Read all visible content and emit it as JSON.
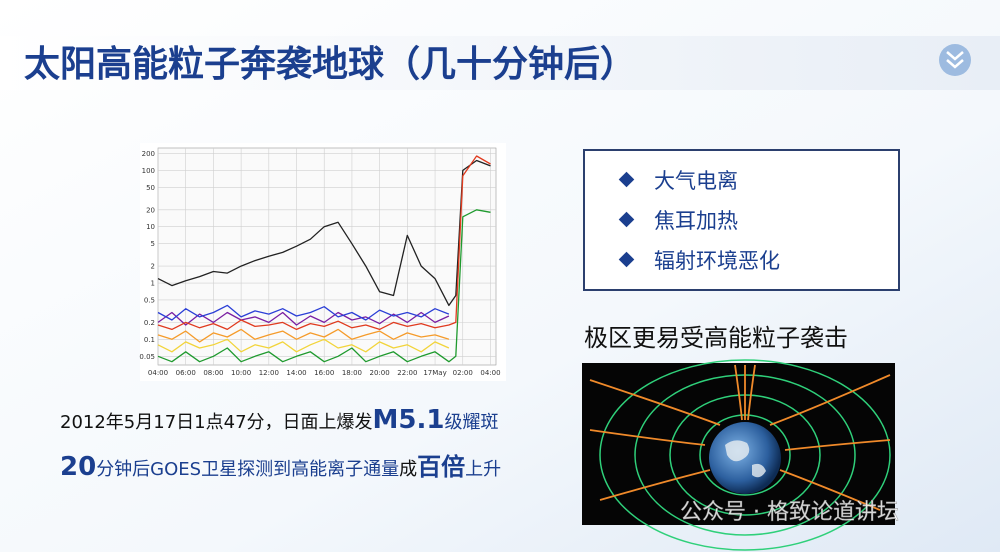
{
  "header": {
    "title": "太阳高能粒子奔袭地球（几十分钟后）"
  },
  "figure": {
    "chart_data": {
      "type": "line",
      "log_scale": true,
      "grid": true,
      "xlim": [
        4,
        28.4
      ],
      "ylim": [
        0.035,
        250
      ],
      "yticks": [
        200,
        100,
        50,
        20,
        10,
        5,
        2,
        1,
        0.5,
        0.2,
        0.1,
        0.05
      ],
      "xticks": [
        {
          "value": 4,
          "label": "04:00"
        },
        {
          "value": 6,
          "label": "06:00"
        },
        {
          "value": 8,
          "label": "08:00"
        },
        {
          "value": 10,
          "label": "10:00"
        },
        {
          "value": 12,
          "label": "12:00"
        },
        {
          "value": 14,
          "label": "14:00"
        },
        {
          "value": 16,
          "label": "16:00"
        },
        {
          "value": 18,
          "label": "18:00"
        },
        {
          "value": 20,
          "label": "20:00"
        },
        {
          "value": 22,
          "label": "22:00"
        },
        {
          "value": 24,
          "label": "17May"
        },
        {
          "value": 26,
          "label": "02:00"
        },
        {
          "value": 28,
          "label": "04:00"
        }
      ],
      "x": [
        4,
        5,
        6,
        7,
        8,
        9,
        10,
        11,
        12,
        13,
        14,
        15,
        16,
        17,
        18,
        19,
        20,
        21,
        22,
        23,
        24,
        25,
        25.5,
        26,
        27,
        28
      ],
      "series": [
        {
          "color": "#222222",
          "values": [
            1.2,
            0.9,
            1.1,
            1.3,
            1.6,
            1.5,
            2,
            2.5,
            3,
            3.5,
            4.5,
            6,
            10,
            12,
            5,
            2,
            0.7,
            0.6,
            7,
            2,
            1.2,
            0.4,
            0.6,
            100,
            150,
            120
          ]
        },
        {
          "color": "#7a1fa2",
          "values": [
            0.2,
            0.3,
            0.18,
            0.28,
            0.2,
            0.3,
            0.22,
            0.25,
            0.2,
            0.3,
            0.18,
            0.26,
            0.2,
            0.3,
            0.22,
            0.25,
            0.19,
            0.28,
            0.2,
            0.3,
            0.2,
            0.26,
            null,
            null,
            null,
            null
          ]
        },
        {
          "color": "#2b3fd6",
          "values": [
            0.3,
            0.22,
            0.35,
            0.25,
            0.3,
            0.4,
            0.25,
            0.32,
            0.28,
            0.35,
            0.26,
            0.3,
            0.38,
            0.25,
            0.3,
            0.22,
            0.33,
            0.26,
            0.3,
            0.25,
            0.35,
            0.28,
            null,
            null,
            null,
            null
          ]
        },
        {
          "color": "#f59b2a",
          "values": [
            0.12,
            0.1,
            0.14,
            0.09,
            0.13,
            0.11,
            0.15,
            0.1,
            0.12,
            0.14,
            0.1,
            0.13,
            0.11,
            0.15,
            0.1,
            0.12,
            0.14,
            0.1,
            0.13,
            0.11,
            0.12,
            0.1,
            null,
            null,
            null,
            null
          ]
        },
        {
          "color": "#f2d43a",
          "values": [
            0.08,
            0.06,
            0.09,
            0.07,
            0.08,
            0.1,
            0.06,
            0.08,
            0.07,
            0.09,
            0.06,
            0.08,
            0.1,
            0.07,
            0.08,
            0.06,
            0.09,
            0.07,
            0.08,
            0.06,
            0.09,
            0.07,
            null,
            null,
            null,
            null
          ]
        },
        {
          "color": "#e03a1e",
          "values": [
            0.18,
            0.15,
            0.2,
            0.16,
            0.19,
            0.15,
            0.22,
            0.17,
            0.18,
            0.2,
            0.15,
            0.19,
            0.17,
            0.21,
            0.16,
            0.18,
            0.15,
            0.2,
            0.17,
            0.19,
            0.16,
            0.18,
            0.2,
            80,
            180,
            130
          ]
        },
        {
          "color": "#1f9a2e",
          "values": [
            0.05,
            0.04,
            0.06,
            0.04,
            0.05,
            0.07,
            0.04,
            0.05,
            0.06,
            0.04,
            0.05,
            0.06,
            0.04,
            0.05,
            0.07,
            0.04,
            0.05,
            0.06,
            0.04,
            0.05,
            0.06,
            0.04,
            0.05,
            15,
            20,
            18
          ]
        }
      ]
    }
  },
  "bullets": [
    "大气电离",
    "焦耳加热",
    "辐射环境恶化"
  ],
  "caption": "极区更易受高能粒子袭击",
  "line1": {
    "a": "2012年5月17日1点47分，日面上爆发",
    "b": "M5.1",
    "c": "级耀斑"
  },
  "line2": {
    "a": "20",
    "b": "分钟后GOES卫星探测到",
    "c": "高能离子通量",
    "d": "成",
    "e": "百倍",
    "f": "上升"
  },
  "watermark": "公众号 · 格致论道讲坛"
}
